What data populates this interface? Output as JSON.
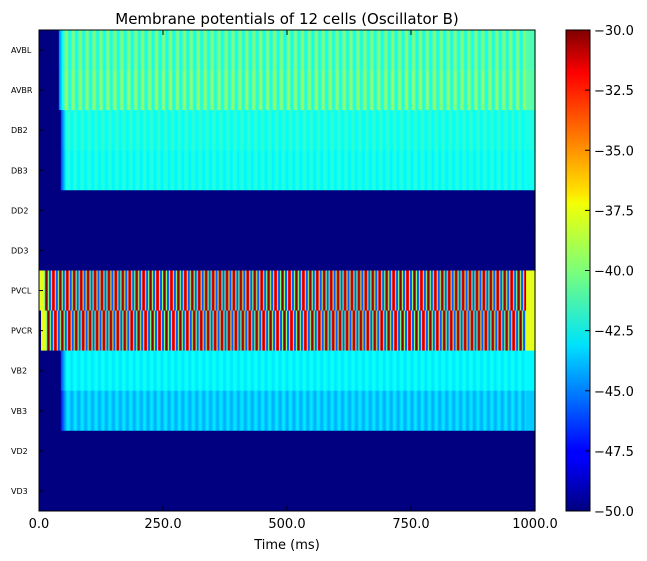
{
  "chart_data": {
    "type": "heatmap",
    "title": "Membrane potentials of 12 cells (Oscillator B)",
    "xlabel": "Time (ms)",
    "ylabel": "",
    "xlim": [
      0,
      1000
    ],
    "x_ticks": [
      0,
      250,
      500,
      750,
      1000
    ],
    "x_tick_labels": [
      "0.0",
      "250.0",
      "500.0",
      "750.0",
      "1000.0"
    ],
    "rows": [
      "AVBL",
      "AVBR",
      "DB2",
      "DB3",
      "DD2",
      "DD3",
      "PVCL",
      "PVCR",
      "VB2",
      "VB3",
      "VD2",
      "VD3"
    ],
    "colorbar": {
      "range": [
        -50,
        -30
      ],
      "ticks": [
        -30,
        -32.5,
        -35,
        -37.5,
        -40,
        -42.5,
        -45,
        -47.5,
        -50
      ],
      "tick_labels": [
        "−30.0",
        "−32.5",
        "−35.0",
        "−37.5",
        "−40.0",
        "−42.5",
        "−45.0",
        "−47.5",
        "−50.0"
      ],
      "colormap": "jet"
    },
    "row_profiles": [
      {
        "name": "AVBL",
        "rest": -50,
        "onset_ms": 40,
        "level": -41.0,
        "stripe_amp": 1.2,
        "period_ms": 14,
        "transient": -45
      },
      {
        "name": "AVBR",
        "rest": -50,
        "onset_ms": 40,
        "level": -40.8,
        "stripe_amp": 1.3,
        "period_ms": 14,
        "transient": -45
      },
      {
        "name": "DB2",
        "rest": -50,
        "onset_ms": 44,
        "level": -42.0,
        "stripe_amp": 0.5,
        "period_ms": 14,
        "transient": -46
      },
      {
        "name": "DB3",
        "rest": -50,
        "onset_ms": 44,
        "level": -42.2,
        "stripe_amp": 0.5,
        "period_ms": 14,
        "transient": -46
      },
      {
        "name": "DD2",
        "rest": -50,
        "onset_ms": null,
        "level": -50,
        "stripe_amp": 0,
        "period_ms": 14,
        "transient": -50
      },
      {
        "name": "DD3",
        "rest": -50,
        "onset_ms": null,
        "level": -50,
        "stripe_amp": 0,
        "period_ms": 14,
        "transient": -50
      },
      {
        "name": "PVCL",
        "rest": -50,
        "onset_ms": 0,
        "level": -38.0,
        "stripe_amp": 8.5,
        "period_ms": 14,
        "transient": -38
      },
      {
        "name": "PVCR",
        "rest": -50,
        "onset_ms": 4,
        "level": -38.0,
        "stripe_amp": 8.5,
        "period_ms": 14,
        "transient": -38
      },
      {
        "name": "VB2",
        "rest": -50,
        "onset_ms": 44,
        "level": -42.6,
        "stripe_amp": 0.4,
        "period_ms": 14,
        "transient": -46
      },
      {
        "name": "VB3",
        "rest": -50,
        "onset_ms": 44,
        "level": -43.5,
        "stripe_amp": 0.6,
        "period_ms": 14,
        "transient": -47
      },
      {
        "name": "VD2",
        "rest": -50,
        "onset_ms": null,
        "level": -50,
        "stripe_amp": 0,
        "period_ms": 14,
        "transient": -50
      },
      {
        "name": "VD3",
        "rest": -50,
        "onset_ms": null,
        "level": -50,
        "stripe_amp": 0,
        "period_ms": 14,
        "transient": -50
      }
    ]
  }
}
